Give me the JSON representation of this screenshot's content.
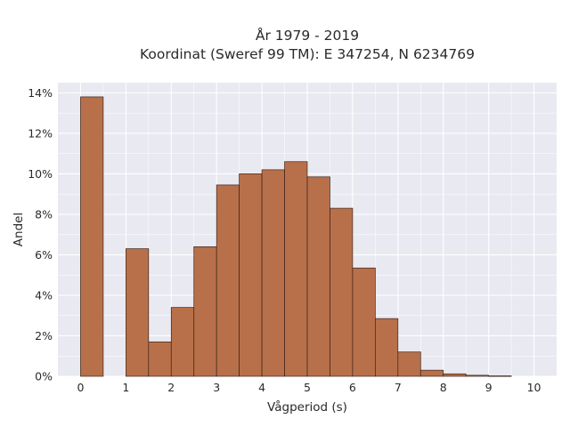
{
  "chart_data": {
    "type": "bar",
    "title_line1": "År 1979 - 2019",
    "title_line2": "Koordinat (Sweref 99 TM): E 347254, N 6234769",
    "xlabel": "Vågperiod (s)",
    "ylabel": "Andel",
    "bin_width": 0.5,
    "bins": [
      {
        "start": 0.0,
        "value": 13.8
      },
      {
        "start": 0.5,
        "value": 0.0
      },
      {
        "start": 1.0,
        "value": 6.3
      },
      {
        "start": 1.5,
        "value": 1.7
      },
      {
        "start": 2.0,
        "value": 3.4
      },
      {
        "start": 2.5,
        "value": 6.4
      },
      {
        "start": 3.0,
        "value": 9.45
      },
      {
        "start": 3.5,
        "value": 10.0
      },
      {
        "start": 4.0,
        "value": 10.2
      },
      {
        "start": 4.5,
        "value": 10.6
      },
      {
        "start": 5.0,
        "value": 9.85
      },
      {
        "start": 5.5,
        "value": 8.3
      },
      {
        "start": 6.0,
        "value": 5.35
      },
      {
        "start": 6.5,
        "value": 2.85
      },
      {
        "start": 7.0,
        "value": 1.2
      },
      {
        "start": 7.5,
        "value": 0.3
      },
      {
        "start": 8.0,
        "value": 0.12
      },
      {
        "start": 8.5,
        "value": 0.05
      },
      {
        "start": 9.0,
        "value": 0.02
      }
    ],
    "xlim": [
      -0.5,
      10.5
    ],
    "ylim": [
      0,
      14.5
    ],
    "x_ticks": [
      "0",
      "1",
      "2",
      "3",
      "4",
      "5",
      "6",
      "7",
      "8",
      "9",
      "10"
    ],
    "y_ticks": [
      "0%",
      "2%",
      "4%",
      "6%",
      "8%",
      "10%",
      "12%",
      "14%"
    ],
    "grid": true,
    "colors": {
      "bar_fill": "#b8704a",
      "bar_edge": "#3b2418",
      "plot_bg": "#e9e9f1",
      "grid": "#ffffff"
    }
  }
}
